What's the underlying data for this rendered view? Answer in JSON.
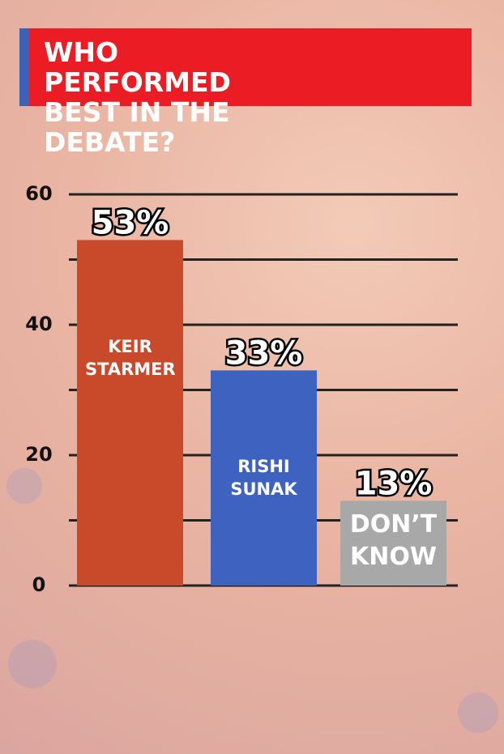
{
  "chart_data": {
    "type": "bar",
    "title": "WHO PERFORMED BEST IN THE DEBATE?",
    "categories": [
      "KEIR STARMER",
      "RISHI SUNAK",
      "DON’T KNOW"
    ],
    "values": [
      53,
      33,
      13
    ],
    "value_labels": [
      "53%",
      "33%",
      "13%"
    ],
    "colors": [
      "#c84a2b",
      "#3e62bf",
      "#a8a8a8"
    ],
    "ylim": [
      0,
      60
    ],
    "yticks": [
      0,
      20,
      40,
      60
    ],
    "grid_lines": [
      10,
      30,
      50
    ],
    "grid": true
  }
}
